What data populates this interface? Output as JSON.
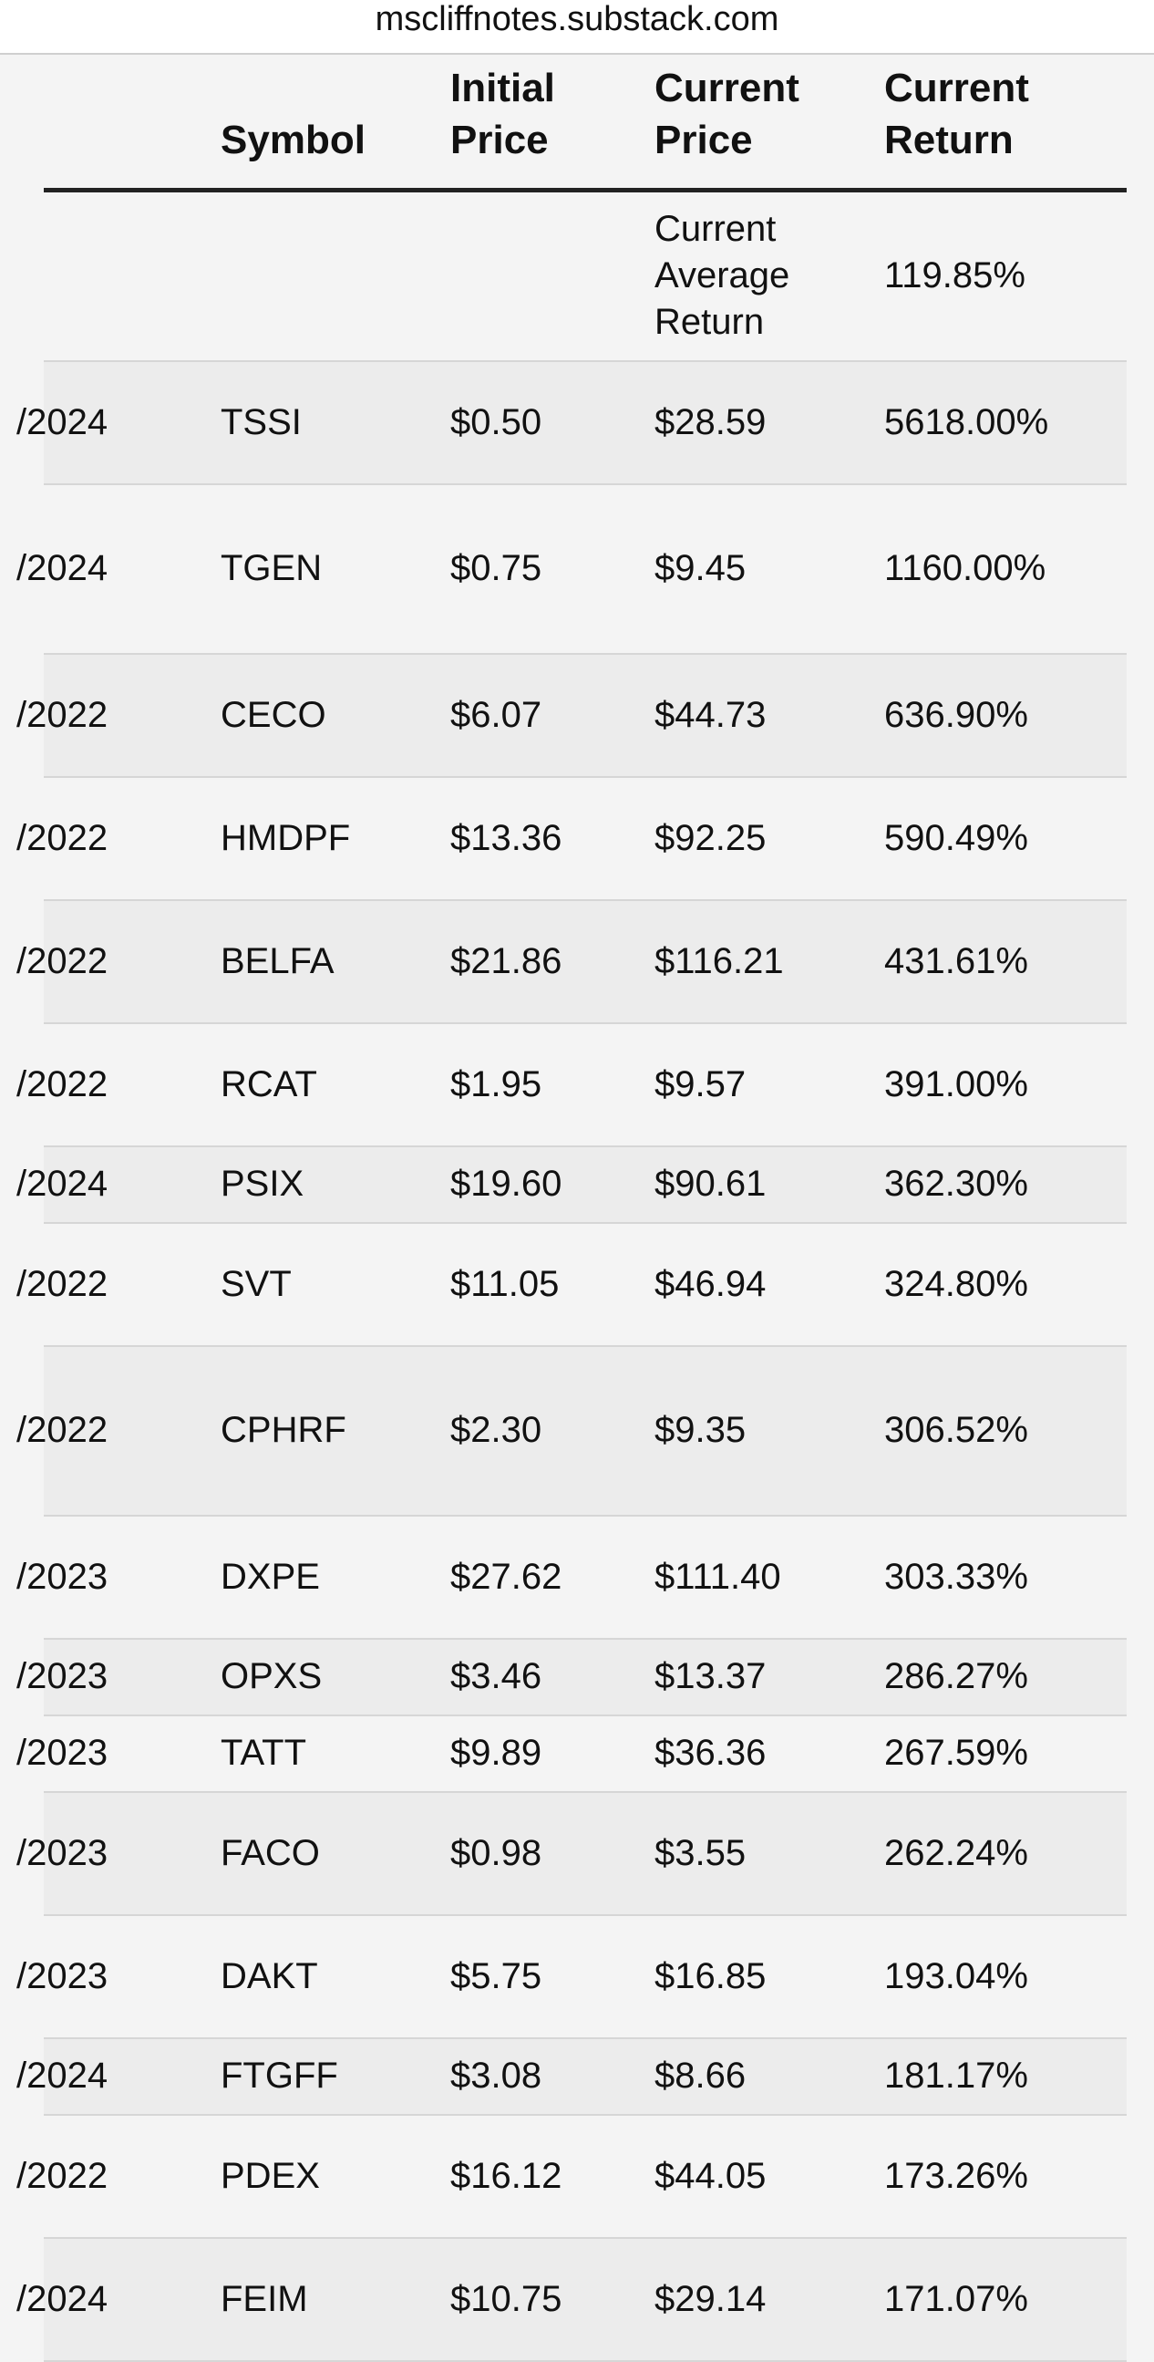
{
  "browser": {
    "url": "mscliffnotes.substack.com"
  },
  "table": {
    "headers": {
      "date": "",
      "symbol": "Symbol",
      "initial_price": "Initial Price",
      "current_price": "Current Price",
      "current_return": "Current Return"
    },
    "average_row": {
      "label": "Current Average Return",
      "value": "119.85%"
    },
    "rows": [
      {
        "date": "/2024",
        "symbol": "TSSI",
        "initial": "$0.50",
        "current": "$28.59",
        "return": "5618.00%"
      },
      {
        "date": "/2024",
        "symbol": "TGEN",
        "initial": "$0.75",
        "current": "$9.45",
        "return": "1160.00%"
      },
      {
        "date": "/2022",
        "symbol": "CECO",
        "initial": "$6.07",
        "current": "$44.73",
        "return": "636.90%"
      },
      {
        "date": "/2022",
        "symbol": "HMDPF",
        "initial": "$13.36",
        "current": "$92.25",
        "return": "590.49%"
      },
      {
        "date": "/2022",
        "symbol": "BELFA",
        "initial": "$21.86",
        "current": "$116.21",
        "return": "431.61%"
      },
      {
        "date": "/2022",
        "symbol": "RCAT",
        "initial": "$1.95",
        "current": "$9.57",
        "return": "391.00%"
      },
      {
        "date": "/2024",
        "symbol": "PSIX",
        "initial": "$19.60",
        "current": "$90.61",
        "return": "362.30%"
      },
      {
        "date": "/2022",
        "symbol": "SVT",
        "initial": "$11.05",
        "current": "$46.94",
        "return": "324.80%"
      },
      {
        "date": "/2022",
        "symbol": "CPHRF",
        "initial": "$2.30",
        "current": "$9.35",
        "return": "306.52%"
      },
      {
        "date": "/2023",
        "symbol": "DXPE",
        "initial": "$27.62",
        "current": "$111.40",
        "return": "303.33%"
      },
      {
        "date": "/2023",
        "symbol": "OPXS",
        "initial": "$3.46",
        "current": "$13.37",
        "return": "286.27%"
      },
      {
        "date": "/2023",
        "symbol": "TATT",
        "initial": "$9.89",
        "current": "$36.36",
        "return": "267.59%"
      },
      {
        "date": "/2023",
        "symbol": "FACO",
        "initial": "$0.98",
        "current": "$3.55",
        "return": "262.24%"
      },
      {
        "date": "/2023",
        "symbol": "DAKT",
        "initial": "$5.75",
        "current": "$16.85",
        "return": "193.04%"
      },
      {
        "date": "/2024",
        "symbol": "FTGFF",
        "initial": "$3.08",
        "current": "$8.66",
        "return": "181.17%"
      },
      {
        "date": "/2022",
        "symbol": "PDEX",
        "initial": "$16.12",
        "current": "$44.05",
        "return": "173.26%"
      },
      {
        "date": "/2024",
        "symbol": "FEIM",
        "initial": "$10.75",
        "current": "$29.14",
        "return": "171.07%"
      }
    ]
  }
}
